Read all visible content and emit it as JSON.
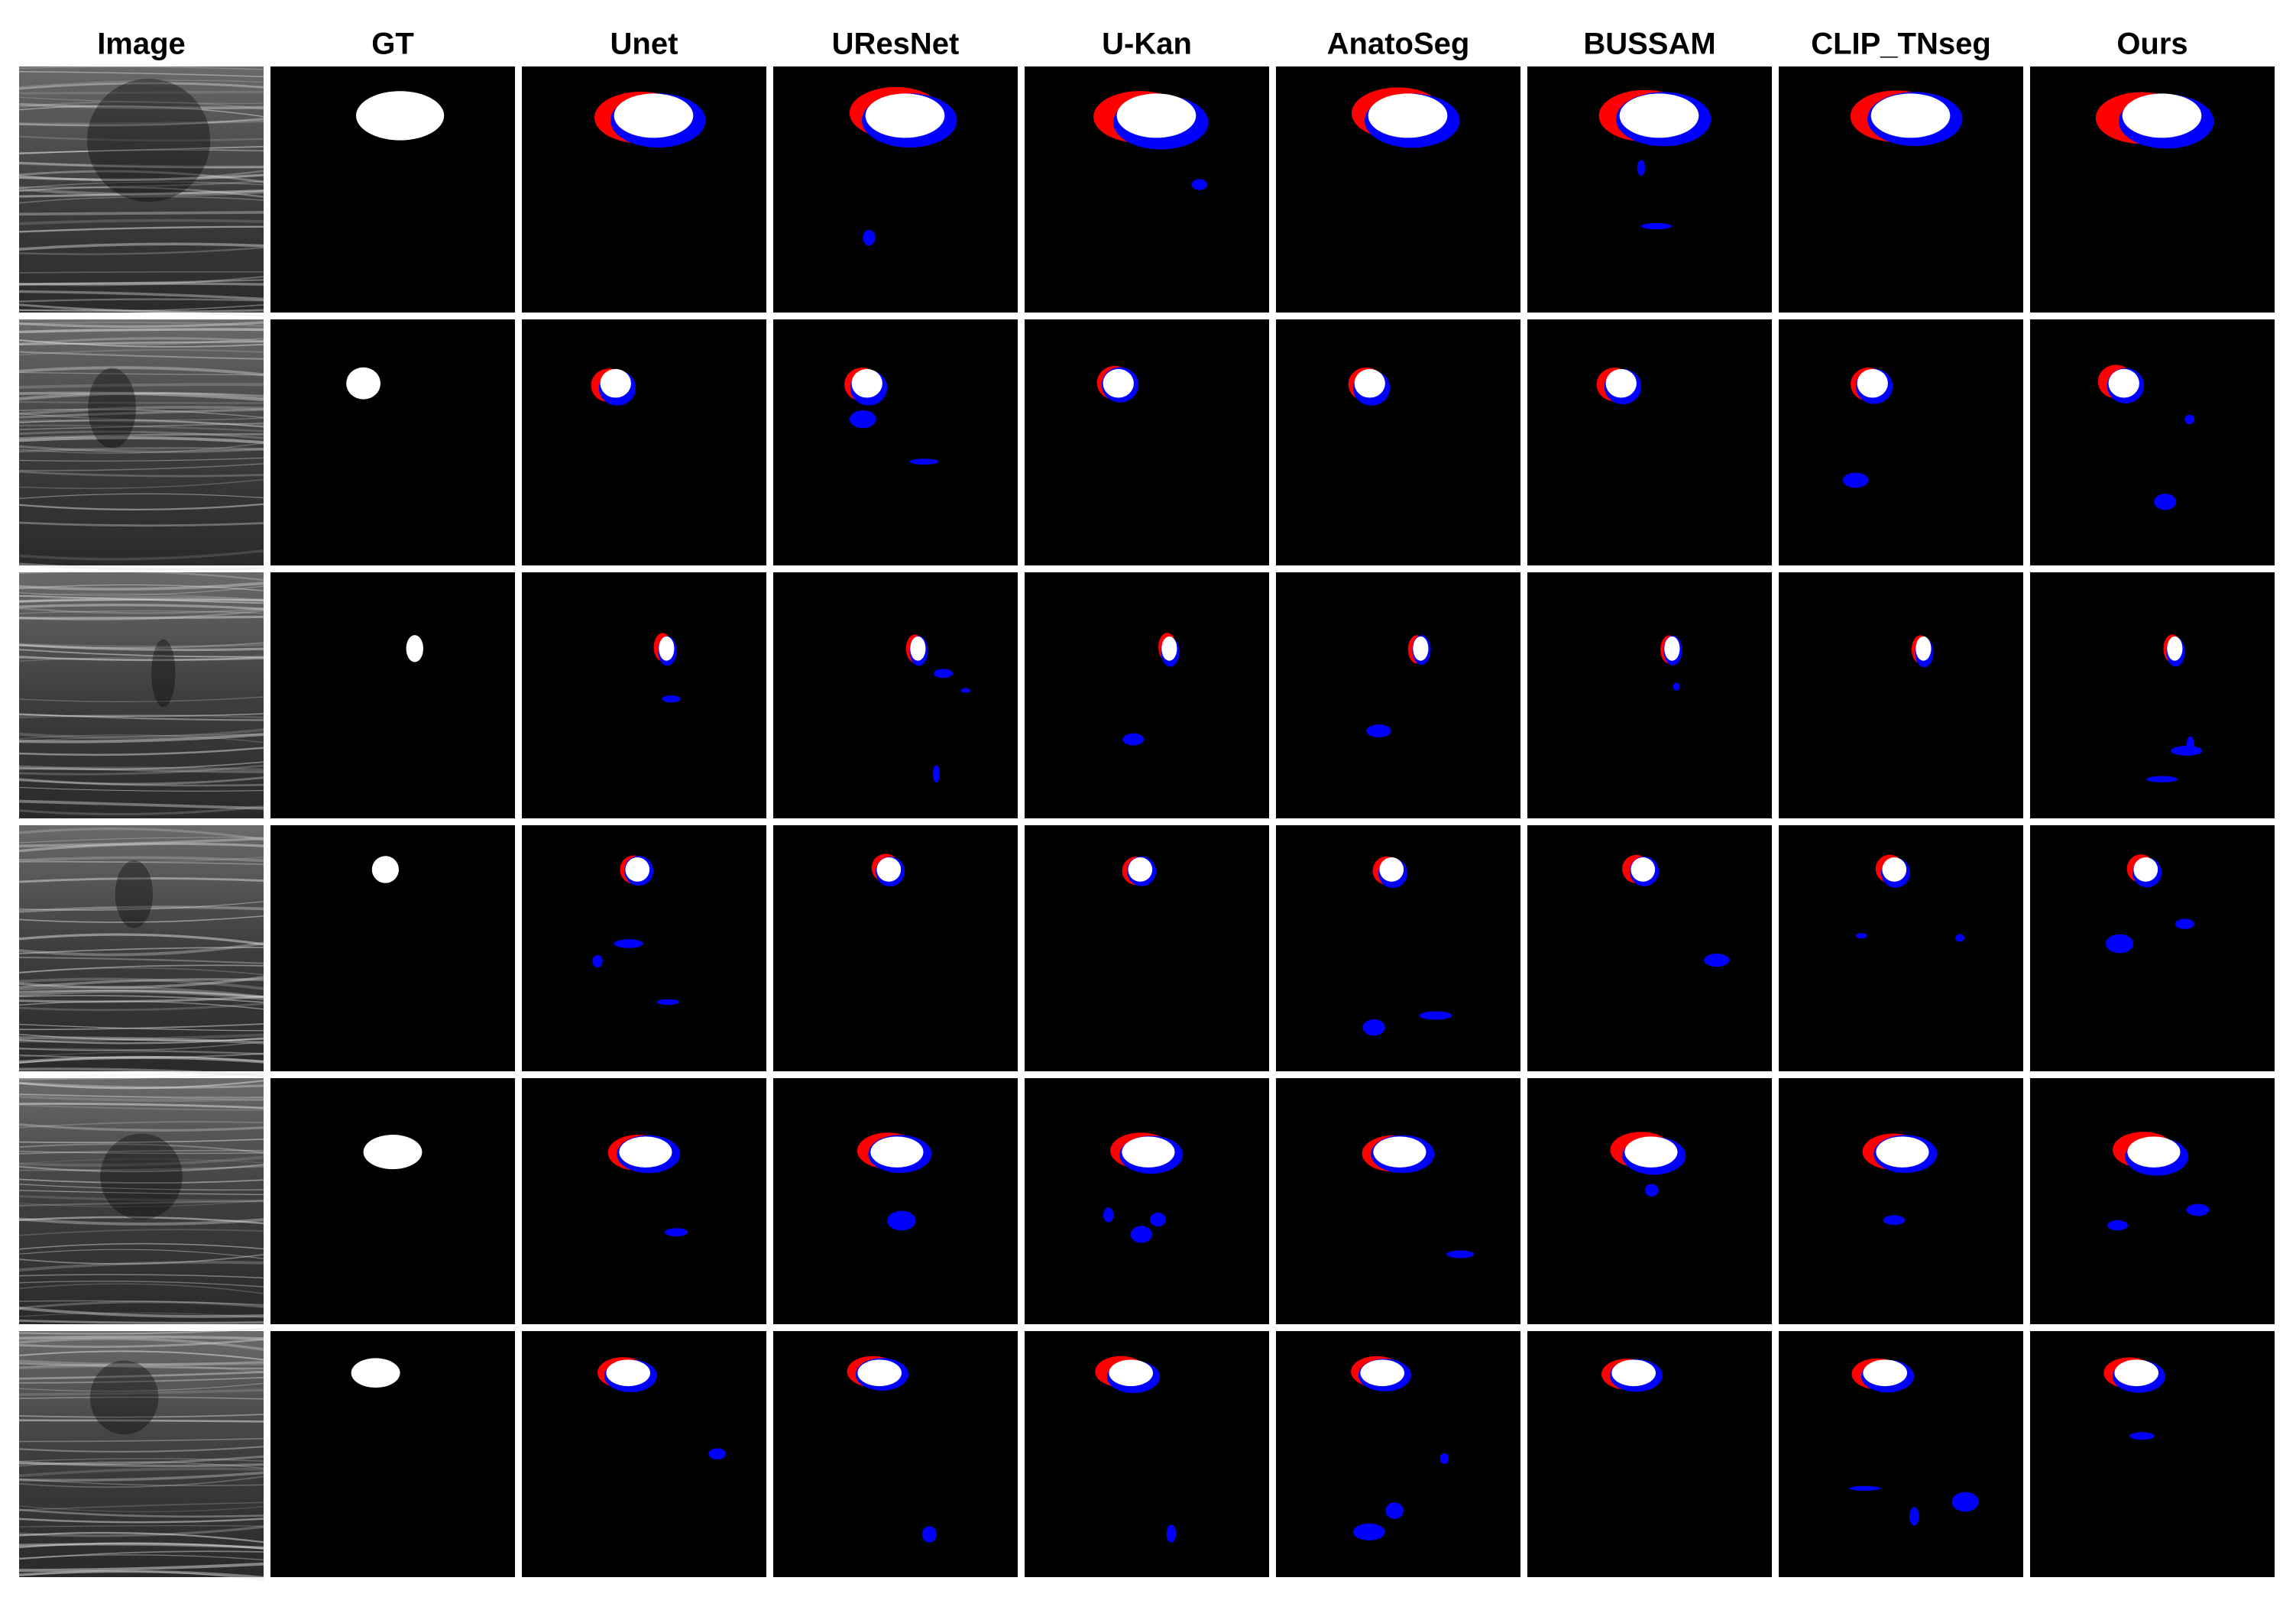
{
  "header": {
    "columns": [
      "Image",
      "GT",
      "Unet",
      "UResNet",
      "U-Kan",
      "AnatoSeg",
      "BUSSAM",
      "CLIP_TNseg",
      "Ours"
    ]
  }
}
